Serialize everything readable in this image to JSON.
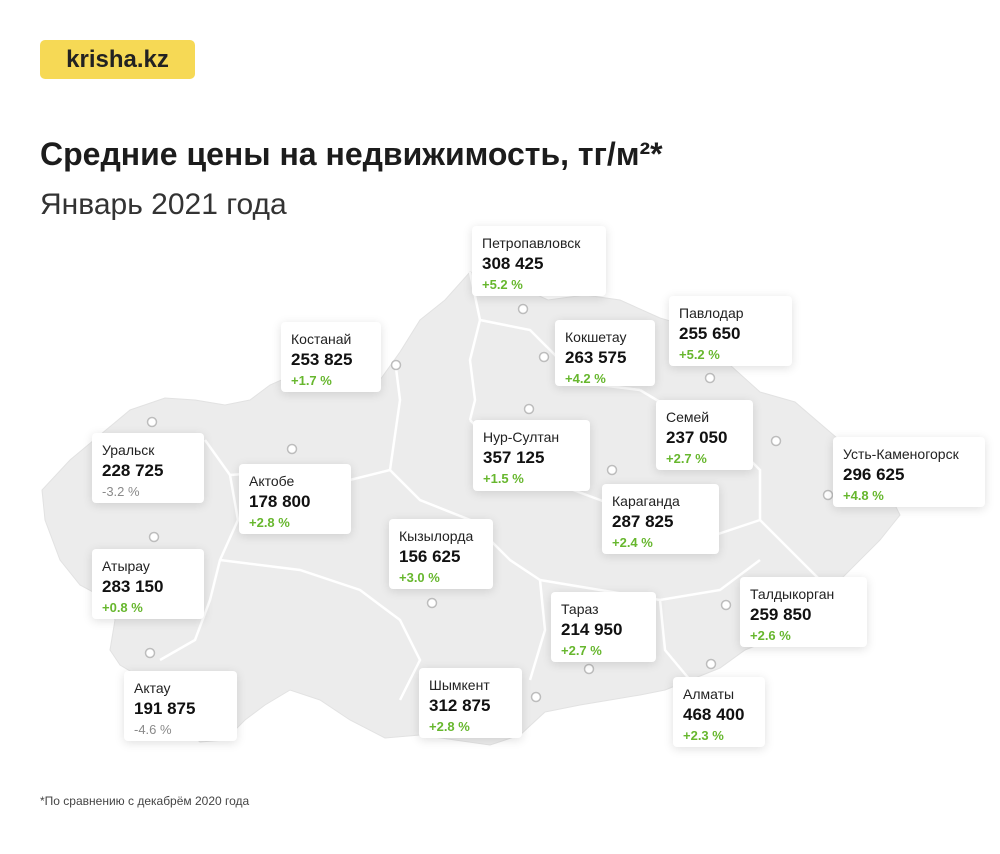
{
  "brand": {
    "logo_text": "krisha.kz"
  },
  "header": {
    "title": "Средние цены на недвижимость, тг/м²*",
    "subtitle": "Январь 2021 года"
  },
  "colors": {
    "brand_yellow": "#f6d955",
    "positive": "#67b72e",
    "negative": "#8a8a8a",
    "map_fill": "#ececec",
    "border": "#ffffff"
  },
  "regions": [
    {
      "id": "petropavlovsk",
      "name": "Петропавловск",
      "price": "308 425",
      "change": "+5.2 %",
      "trend": "pos"
    },
    {
      "id": "pavlodar",
      "name": "Павлодар",
      "price": "255 650",
      "change": "+5.2 %",
      "trend": "pos"
    },
    {
      "id": "kostanay",
      "name": "Костанай",
      "price": "253 825",
      "change": "+1.7 %",
      "trend": "pos"
    },
    {
      "id": "kokshetau",
      "name": "Кокшетау",
      "price": "263 575",
      "change": "+4.2 %",
      "trend": "pos"
    },
    {
      "id": "uralsk",
      "name": "Уральск",
      "price": "228 725",
      "change": "-3.2 %",
      "trend": "neg"
    },
    {
      "id": "nursultan",
      "name": "Нур-Султан",
      "price": "357 125",
      "change": "+1.5 %",
      "trend": "pos"
    },
    {
      "id": "semey",
      "name": "Семей",
      "price": "237 050",
      "change": "+2.7 %",
      "trend": "pos"
    },
    {
      "id": "ustkamenogorsk",
      "name": "Усть-Каменогорск",
      "price": "296 625",
      "change": "+4.8 %",
      "trend": "pos"
    },
    {
      "id": "aktobe",
      "name": "Актобе",
      "price": "178 800",
      "change": "+2.8 %",
      "trend": "pos"
    },
    {
      "id": "karaganda",
      "name": "Караганда",
      "price": "287 825",
      "change": "+2.4 %",
      "trend": "pos"
    },
    {
      "id": "kyzylorda",
      "name": "Кызылорда",
      "price": "156 625",
      "change": "+3.0 %",
      "trend": "pos"
    },
    {
      "id": "atyrau",
      "name": "Атырау",
      "price": "283 150",
      "change": "+0.8 %",
      "trend": "pos"
    },
    {
      "id": "taraz",
      "name": "Тараз",
      "price": "214 950",
      "change": "+2.7 %",
      "trend": "pos"
    },
    {
      "id": "taldykorgan",
      "name": "Талдыкорган",
      "price": "259 850",
      "change": "+2.6 %",
      "trend": "pos"
    },
    {
      "id": "aktau",
      "name": "Актау",
      "price": "191 875",
      "change": "-4.6 %",
      "trend": "neg"
    },
    {
      "id": "shymkent",
      "name": "Шымкент",
      "price": "312 875",
      "change": "+2.8 %",
      "trend": "pos"
    },
    {
      "id": "almaty",
      "name": "Алматы",
      "price": "468 400",
      "change": "+2.3 %",
      "trend": "pos"
    }
  ],
  "footnote": "*По сравнению с декабрём 2020 года"
}
